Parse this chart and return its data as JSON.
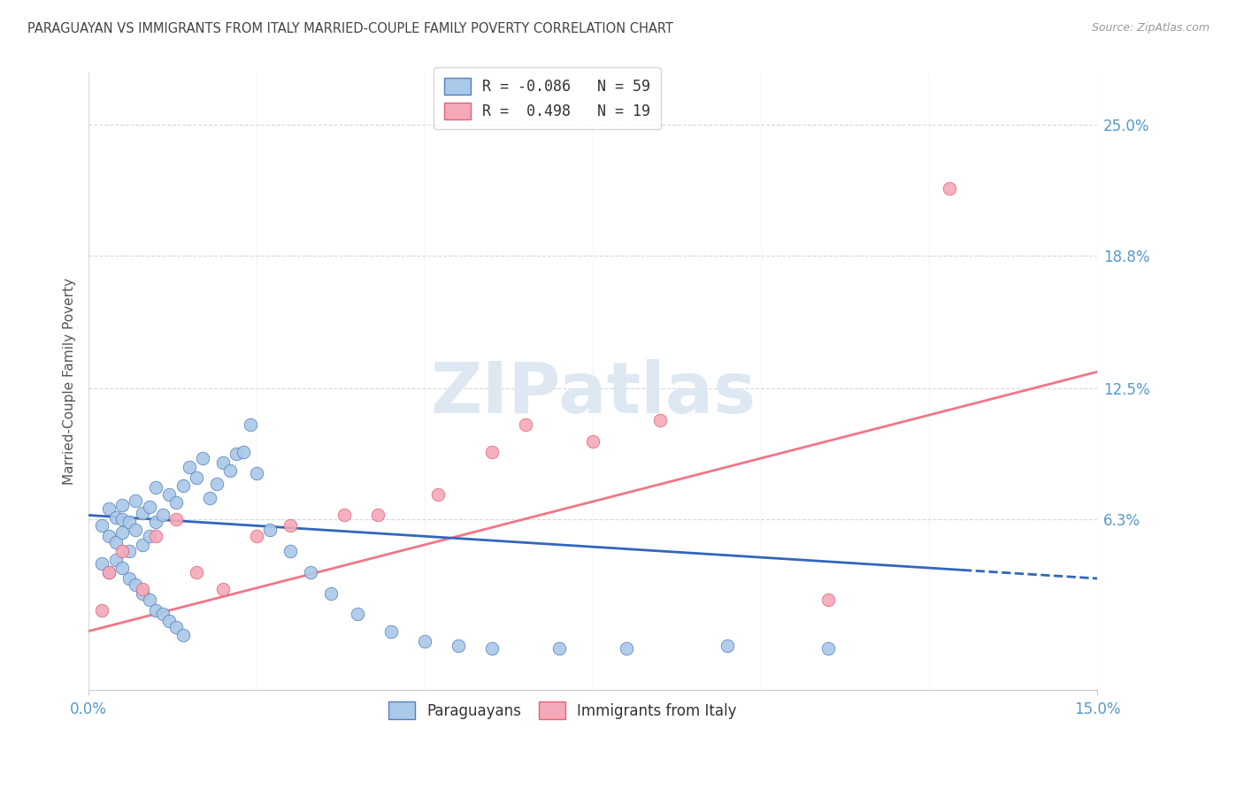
{
  "title": "PARAGUAYAN VS IMMIGRANTS FROM ITALY MARRIED-COUPLE FAMILY POVERTY CORRELATION CHART",
  "source": "Source: ZipAtlas.com",
  "ylabel": "Married-Couple Family Poverty",
  "xlim": [
    0.0,
    0.15
  ],
  "ylim": [
    -0.018,
    0.275
  ],
  "ytick_labels": [
    "25.0%",
    "18.8%",
    "12.5%",
    "6.3%"
  ],
  "ytick_positions": [
    0.25,
    0.188,
    0.125,
    0.063
  ],
  "background_color": "#ffffff",
  "grid_color": "#d8d8d8",
  "title_color": "#444444",
  "axis_label_color": "#555555",
  "tick_label_color": "#5599cc",
  "source_color": "#999999",
  "color_paraguayan": "#aac8e8",
  "color_paraguayan_edge": "#5580bb",
  "color_italy": "#f5a8b8",
  "color_italy_edge": "#dd6677",
  "color_line_paraguayan": "#3366bb",
  "color_line_italy": "#ee7788",
  "watermark": "ZIPatlas",
  "watermark_color": "#dde8f2",
  "par_x": [
    0.002,
    0.003,
    0.003,
    0.004,
    0.004,
    0.005,
    0.005,
    0.005,
    0.006,
    0.006,
    0.007,
    0.007,
    0.008,
    0.008,
    0.009,
    0.009,
    0.01,
    0.01,
    0.011,
    0.012,
    0.013,
    0.014,
    0.015,
    0.016,
    0.017,
    0.018,
    0.019,
    0.02,
    0.021,
    0.022,
    0.023,
    0.024,
    0.025,
    0.002,
    0.003,
    0.004,
    0.005,
    0.006,
    0.007,
    0.008,
    0.009,
    0.01,
    0.011,
    0.012,
    0.013,
    0.014,
    0.027,
    0.03,
    0.033,
    0.036,
    0.04,
    0.045,
    0.05,
    0.055,
    0.06,
    0.07,
    0.08,
    0.095,
    0.11
  ],
  "par_y": [
    0.06,
    0.055,
    0.068,
    0.052,
    0.064,
    0.057,
    0.063,
    0.07,
    0.048,
    0.062,
    0.058,
    0.072,
    0.051,
    0.066,
    0.055,
    0.069,
    0.062,
    0.078,
    0.065,
    0.075,
    0.071,
    0.079,
    0.088,
    0.083,
    0.092,
    0.073,
    0.08,
    0.09,
    0.086,
    0.094,
    0.095,
    0.108,
    0.085,
    0.042,
    0.038,
    0.044,
    0.04,
    0.035,
    0.032,
    0.028,
    0.025,
    0.02,
    0.018,
    0.015,
    0.012,
    0.008,
    0.058,
    0.048,
    0.038,
    0.028,
    0.018,
    0.01,
    0.005,
    0.003,
    0.002,
    0.002,
    0.002,
    0.003,
    0.002
  ],
  "ita_x": [
    0.002,
    0.003,
    0.005,
    0.008,
    0.01,
    0.013,
    0.016,
    0.02,
    0.025,
    0.03,
    0.038,
    0.043,
    0.052,
    0.06,
    0.065,
    0.075,
    0.085,
    0.11,
    0.128
  ],
  "ita_y": [
    0.02,
    0.038,
    0.048,
    0.03,
    0.055,
    0.063,
    0.038,
    0.03,
    0.055,
    0.06,
    0.065,
    0.065,
    0.075,
    0.095,
    0.108,
    0.1,
    0.11,
    0.025,
    0.22
  ],
  "par_line_x": [
    0.0,
    0.13,
    0.15
  ],
  "par_line_solid_end": 0.13,
  "ita_line_x": [
    0.0,
    0.15
  ],
  "legend_r1": "R = -0.086",
  "legend_n1": "N = 59",
  "legend_r2": "R =  0.498",
  "legend_n2": "N = 19"
}
